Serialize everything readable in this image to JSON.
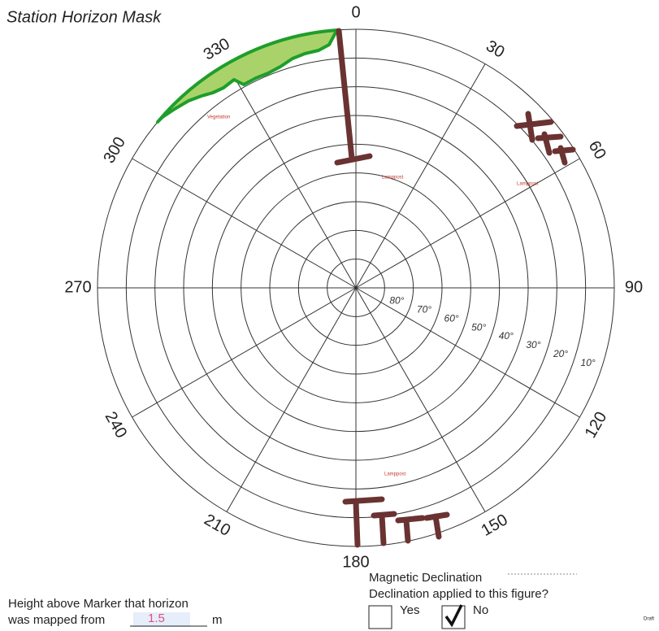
{
  "title": "Station Horizon Mask",
  "azimuths": [
    0,
    30,
    60,
    90,
    120,
    150,
    180,
    210,
    240,
    270,
    300,
    330
  ],
  "elevations": [
    "80°",
    "70°",
    "60°",
    "50°",
    "40°",
    "30°",
    "20°",
    "10°"
  ],
  "annotations": [
    "Vegetation",
    "Lamppost",
    "Lamppost",
    "Lamppost"
  ],
  "height": {
    "label_line1": "Height above Marker that horizon",
    "label_line2": "was mapped from",
    "value": "1.5",
    "unit": "m"
  },
  "declination": {
    "label": "Magnetic Declination",
    "question": "Declination applied to this figure?",
    "yes": "Yes",
    "no": "No"
  },
  "draft": "Draft"
}
